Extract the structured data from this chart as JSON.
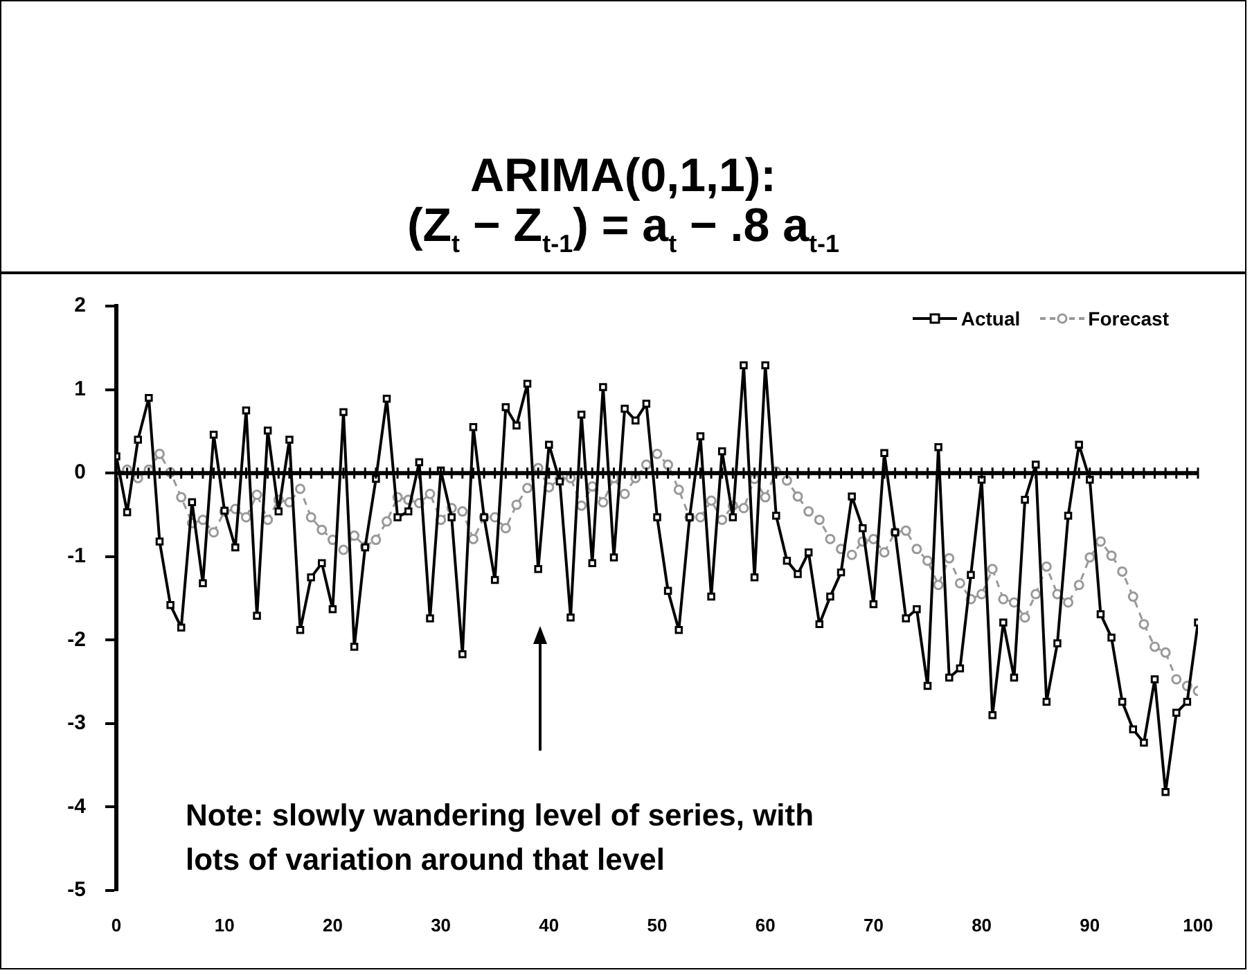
{
  "chart_data": {
    "type": "line",
    "title": "ARIMA(0,1,1):",
    "subtitle": "(Z$_{t}$ − Z$_{t-1}$)  =  a$_{t}$ − .8 a$_{t-1}$",
    "x": [
      0,
      1,
      2,
      3,
      4,
      5,
      6,
      7,
      8,
      9,
      10,
      11,
      12,
      13,
      14,
      15,
      16,
      17,
      18,
      19,
      20,
      21,
      22,
      23,
      24,
      25,
      26,
      27,
      28,
      29,
      30,
      31,
      32,
      33,
      34,
      35,
      36,
      37,
      38,
      39,
      40,
      41,
      42,
      43,
      44,
      45,
      46,
      47,
      48,
      49,
      50,
      51,
      52,
      53,
      54,
      55,
      56,
      57,
      58,
      59,
      60,
      61,
      62,
      63,
      64,
      65,
      66,
      67,
      68,
      69,
      70,
      71,
      72,
      73,
      74,
      75,
      76,
      77,
      78,
      79,
      80,
      81,
      82,
      83,
      84,
      85,
      86,
      87,
      88,
      89,
      90,
      91,
      92,
      93,
      94,
      95,
      96,
      97,
      98,
      99,
      100
    ],
    "series": [
      {
        "name": "Actual",
        "color": "#000000",
        "marker": "square",
        "line_style": "solid",
        "values": [
          0.2,
          -0.47,
          0.4,
          0.9,
          -0.82,
          -1.58,
          -1.85,
          -0.35,
          -1.32,
          0.46,
          -0.45,
          -0.89,
          0.75,
          -1.71,
          0.51,
          -0.46,
          0.4,
          -1.88,
          -1.25,
          -1.08,
          -1.63,
          0.73,
          -2.08,
          -0.89,
          -0.07,
          0.89,
          -0.53,
          -0.46,
          0.13,
          -1.74,
          0.03,
          -0.53,
          -2.17,
          0.55,
          -0.53,
          -1.28,
          0.79,
          0.57,
          1.07,
          -1.15,
          0.34,
          -0.1,
          -1.73,
          0.7,
          -1.08,
          1.03,
          -1.01,
          0.77,
          0.63,
          0.83,
          -0.53,
          -1.41,
          -1.88,
          -0.53,
          0.44,
          -1.48,
          0.26,
          -0.53,
          1.29,
          -1.25,
          1.29,
          -0.51,
          -1.05,
          -1.21,
          -0.95,
          -1.81,
          -1.48,
          -1.19,
          -0.28,
          -0.66,
          -1.57,
          0.24,
          -0.71,
          -1.74,
          -1.63,
          -2.55,
          0.31,
          -2.45,
          -2.34,
          -1.22,
          -0.08,
          -2.9,
          -1.79,
          -2.45,
          -0.32,
          0.1,
          -2.74,
          -2.04,
          -0.51,
          0.34,
          -0.08,
          -1.69,
          -1.97,
          -2.74,
          -3.07,
          -3.23,
          -2.47,
          -3.82,
          -2.87,
          -2.74,
          -1.79
        ]
      },
      {
        "name": "Forecast",
        "color": "#999999",
        "marker": "circle",
        "line_style": "dashed",
        "values": [
          0,
          0.04,
          -0.06,
          0.04,
          0.23,
          0.01,
          -0.29,
          -0.6,
          -0.56,
          -0.71,
          -0.46,
          -0.43,
          -0.53,
          -0.26,
          -0.56,
          -0.32,
          -0.35,
          -0.19,
          -0.53,
          -0.68,
          -0.8,
          -0.92,
          -0.75,
          -0.88,
          -0.8,
          -0.58,
          -0.29,
          -0.32,
          -0.36,
          -0.25,
          -0.56,
          -0.42,
          -0.46,
          -0.79,
          -0.53,
          -0.53,
          -0.66,
          -0.38,
          -0.18,
          0.06,
          -0.17,
          -0.07,
          -0.06,
          -0.39,
          -0.16,
          -0.35,
          -0.06,
          -0.25,
          -0.06,
          0.1,
          0.23,
          0.1,
          -0.2,
          -0.53,
          -0.53,
          -0.33,
          -0.56,
          -0.39,
          -0.42,
          -0.07,
          -0.29,
          0.02,
          -0.09,
          -0.28,
          -0.46,
          -0.56,
          -0.79,
          -0.91,
          -0.98,
          -0.82,
          -0.79,
          -0.95,
          -0.71,
          -0.69,
          -0.91,
          -1.05,
          -1.34,
          -1.02,
          -1.32,
          -1.51,
          -1.45,
          -1.15,
          -1.51,
          -1.55,
          -1.73,
          -1.45,
          -1.12,
          -1.45,
          -1.55,
          -1.34,
          -1.01,
          -0.82,
          -0.99,
          -1.18,
          -1.48,
          -1.81,
          -2.08,
          -2.15,
          -2.47,
          -2.55,
          -2.61
        ]
      }
    ],
    "xlim": [
      0,
      100
    ],
    "xticks": [
      0,
      10,
      20,
      30,
      40,
      50,
      60,
      70,
      80,
      90,
      100
    ],
    "ylim": [
      -5,
      2
    ],
    "yticks": [
      -5,
      -4,
      -3,
      -2,
      -1,
      0,
      1,
      2
    ],
    "ref_lines": [
      {
        "axis": "y",
        "value": 0,
        "color": "#000000"
      }
    ],
    "annotations": [
      "Note: slowly wandering level of series, with lots of variation around that level"
    ],
    "grid": false,
    "legend": "top right"
  }
}
